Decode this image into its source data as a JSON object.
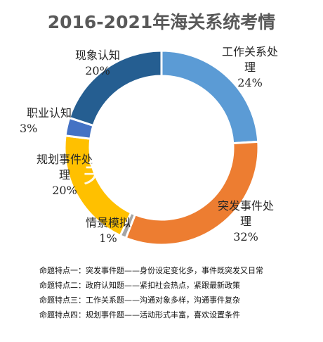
{
  "chart_data": {
    "type": "pie",
    "title": "2016-2021年海关系统考情",
    "slices": [
      {
        "name": "工作关系处理",
        "value": 24,
        "value_label": "24%",
        "color": "#5b9bd5"
      },
      {
        "name": "突发事件处理",
        "value": 32,
        "value_label": "32%",
        "color": "#ed7d31"
      },
      {
        "name": "情景模拟",
        "value": 1,
        "value_label": "1%",
        "color": "#a5a5a5"
      },
      {
        "name": "规划事件处理",
        "value": 20,
        "value_label": "20%",
        "color": "#ffc000"
      },
      {
        "name": "职业认知",
        "value": 3,
        "value_label": "3%",
        "color": "#4472c4"
      },
      {
        "name": "现象认知",
        "value": 20,
        "value_label": "20%",
        "color": "#255e91"
      }
    ]
  },
  "labels": {
    "gongzuo_line1": "工作关系处",
    "gongzuo_line2": "理",
    "gongzuo_pct": "24%",
    "tufa_line1": "突发事件处",
    "tufa_line2": "理",
    "tufa_pct": "32%",
    "qingjing_line1": "情景模拟",
    "qingjing_pct": "1%",
    "guihua_line1": "规划事件处",
    "guihua_line2": "理",
    "guihua_pct": "20%",
    "zhiye_line1": "职业认知",
    "zhiye_pct": "3%",
    "xianxiang_line1": "现象认知",
    "xianxiang_pct": "20%"
  },
  "watermark": {
    "line1": "国",
    "line2": "关 试"
  },
  "notes": [
    "命题特点一：突发事件题——身份设定变化多，事件既突发又日常",
    "命题特点二：政府认知题——紧扣社会热点，紧跟最新政策",
    "命题特点三：工作关系题——沟通对象多样，沟通事件复杂",
    "命题特点四：规划事件题——活动形式丰富，喜欢设置条件"
  ]
}
